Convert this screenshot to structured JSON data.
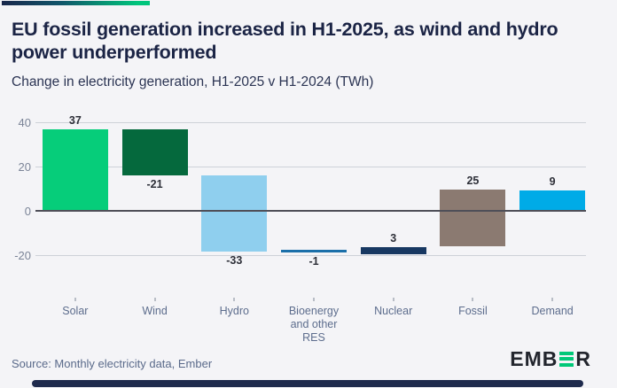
{
  "card": {
    "title": "EU fossil generation increased in H1-2025, as wind and hydro power underperformed",
    "subtitle": "Change in electricity generation, H1-2025 v H1-2024 (TWh)",
    "source": "Source: Monthly electricity data, Ember",
    "logo": {
      "text_left": "EMB",
      "text_right": "R",
      "icon": "ember-green-e-bars-icon",
      "green": "#00c878",
      "ink": "#22252d"
    },
    "accent_colors": [
      "#19274b",
      "#00c57c"
    ],
    "background": "#f4f4f7"
  },
  "chart_data": {
    "type": "bar",
    "subtype": "waterfall",
    "title": "EU fossil generation increased in H1-2025, as wind and hydro power underperformed",
    "subtitle": "Change in electricity generation, H1-2025 v H1-2024 (TWh)",
    "unit": "TWh",
    "xlabel": "",
    "ylabel": "",
    "ylim": [
      -28,
      44
    ],
    "grid": true,
    "legend": "none",
    "y_ticks": [
      40,
      20,
      0,
      -20
    ],
    "categories": [
      "Solar",
      "Wind",
      "Hydro",
      "Bioenergy and other RES",
      "Nuclear",
      "Fossil",
      "Demand"
    ],
    "values": [
      37,
      -21,
      -33,
      -1,
      3,
      25,
      9
    ],
    "bars": [
      {
        "category": "Solar",
        "label": "37",
        "from": 0,
        "to": 37,
        "color": "#06cd7a",
        "label_pos": "above"
      },
      {
        "category": "Wind",
        "label": "-21",
        "from": 37,
        "to": 16,
        "color": "#05693d",
        "label_pos": "below"
      },
      {
        "category": "Hydro",
        "label": "-33",
        "from": 16,
        "to": -18.4,
        "color": "#8fcfee",
        "label_pos": "below"
      },
      {
        "category": "Bioenergy\nand other\nRES",
        "label": "-1",
        "from": -17.5,
        "to": -18.9,
        "color": "#1a6fa9",
        "label_pos": "below"
      },
      {
        "category": "Nuclear",
        "label": "3",
        "from": -19.5,
        "to": -16.5,
        "color": "#173862",
        "label_pos": "above"
      },
      {
        "category": "Fossil",
        "label": "25",
        "from": -16,
        "to": 9.5,
        "color": "#8b7a71",
        "label_pos": "above"
      },
      {
        "category": "Demand",
        "label": "9",
        "from": 0,
        "to": 9.3,
        "color": "#00abe7",
        "label_pos": "above"
      }
    ],
    "colors": {
      "gridline": "#cdd1d8",
      "zero_line": "#4f4f58",
      "y_tick_text": "#7b8497",
      "x_label_text": "#5d6d8d",
      "value_label_text": "#2d2f38"
    }
  }
}
